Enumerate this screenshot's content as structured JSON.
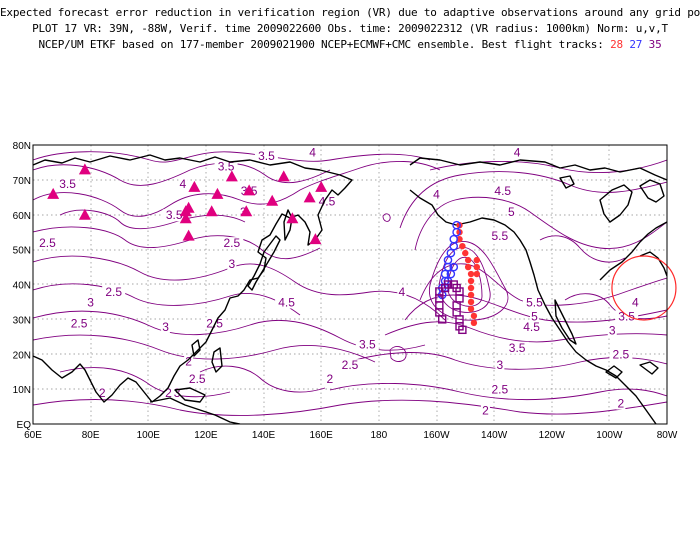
{
  "title": {
    "line1": "Expected forecast error reduction in verification region (VR) due to adaptive observations around any grid point.",
    "line2": "PLOT 17 VR: 39N, -88W, Verif. time 2009022600 Obs. time: 2009022312 (VR radius: 1000km) Norm: u,v,T",
    "line3_prefix": "NCEP/UM ETKF based on 177-member 2009021900 NCEP+ECMWF+CMC ensemble. Best flight tracks:",
    "track_numbers": [
      "28",
      "27",
      "35"
    ]
  },
  "colors": {
    "contour": "#800080",
    "track_28": "#ff3333",
    "track_27": "#3333ff",
    "track_35": "#800080",
    "triangles": "#e0007f",
    "verification_circle": "#ff2a2a"
  },
  "axes": {
    "lon_ticks": [
      "60E",
      "80E",
      "100E",
      "120E",
      "140E",
      "160E",
      "180",
      "160W",
      "140W",
      "120W",
      "100W",
      "80W"
    ],
    "lat_ticks": [
      "EQ",
      "10N",
      "20N",
      "30N",
      "40N",
      "50N",
      "60N",
      "70N",
      "80N"
    ]
  },
  "chart_data": {
    "type": "map-contour",
    "extent": {
      "lon": [
        60,
        280
      ],
      "lat": [
        0,
        80
      ]
    },
    "verification_region": {
      "lat": 39,
      "lon": 272,
      "radius_km": 1000
    },
    "contour_labels": [
      {
        "text": "3.5",
        "lon": 72,
        "lat": 68
      },
      {
        "text": "4",
        "lon": 112,
        "lat": 68
      },
      {
        "text": "3.5",
        "lon": 127,
        "lat": 73
      },
      {
        "text": "3.5",
        "lon": 141,
        "lat": 76
      },
      {
        "text": "3.5",
        "lon": 135,
        "lat": 66
      },
      {
        "text": "4",
        "lon": 157,
        "lat": 77
      },
      {
        "text": "3.5",
        "lon": 109,
        "lat": 59
      },
      {
        "text": "3",
        "lon": 133,
        "lat": 60
      },
      {
        "text": "4.5",
        "lon": 162,
        "lat": 63
      },
      {
        "text": "4",
        "lon": 200,
        "lat": 65
      },
      {
        "text": "4.5",
        "lon": 223,
        "lat": 66
      },
      {
        "text": "5",
        "lon": 226,
        "lat": 60
      },
      {
        "text": "4",
        "lon": 228,
        "lat": 77
      },
      {
        "text": "5.5",
        "lon": 222,
        "lat": 53
      },
      {
        "text": "2.5",
        "lon": 65,
        "lat": 51
      },
      {
        "text": "2.5",
        "lon": 88,
        "lat": 37
      },
      {
        "text": "2.5",
        "lon": 129,
        "lat": 51
      },
      {
        "text": "3",
        "lon": 129,
        "lat": 45
      },
      {
        "text": "3",
        "lon": 80,
        "lat": 34
      },
      {
        "text": "2.5",
        "lon": 76,
        "lat": 28
      },
      {
        "text": "3",
        "lon": 106,
        "lat": 27
      },
      {
        "text": "2.5",
        "lon": 123,
        "lat": 28
      },
      {
        "text": "4.5",
        "lon": 148,
        "lat": 34
      },
      {
        "text": "4",
        "lon": 188,
        "lat": 37
      },
      {
        "text": "5.5",
        "lon": 234,
        "lat": 34
      },
      {
        "text": "5",
        "lon": 234,
        "lat": 30
      },
      {
        "text": "4.5",
        "lon": 233,
        "lat": 27
      },
      {
        "text": "3.5",
        "lon": 176,
        "lat": 22
      },
      {
        "text": "2.5",
        "lon": 170,
        "lat": 16
      },
      {
        "text": "3.5",
        "lon": 228,
        "lat": 21
      },
      {
        "text": "3",
        "lon": 222,
        "lat": 16
      },
      {
        "text": "4",
        "lon": 269,
        "lat": 34
      },
      {
        "text": "3.5",
        "lon": 266,
        "lat": 30
      },
      {
        "text": "3",
        "lon": 261,
        "lat": 26
      },
      {
        "text": "2.5",
        "lon": 264,
        "lat": 19
      },
      {
        "text": "2",
        "lon": 114,
        "lat": 17
      },
      {
        "text": "2.5",
        "lon": 117,
        "lat": 12
      },
      {
        "text": "3",
        "lon": 110,
        "lat": 8
      },
      {
        "text": "2",
        "lon": 84,
        "lat": 8
      },
      {
        "text": "2",
        "lon": 107,
        "lat": 8
      },
      {
        "text": "2",
        "lon": 163,
        "lat": 12
      },
      {
        "text": "2.5",
        "lon": 222,
        "lat": 9
      },
      {
        "text": "2",
        "lon": 217,
        "lat": 3
      },
      {
        "text": "2",
        "lon": 264,
        "lat": 5
      }
    ],
    "observation_sites": [
      {
        "lat": 66,
        "lon": 67
      },
      {
        "lat": 73,
        "lon": 78
      },
      {
        "lat": 60,
        "lon": 78
      },
      {
        "lat": 61,
        "lon": 113
      },
      {
        "lat": 68,
        "lon": 116
      },
      {
        "lat": 62,
        "lon": 114
      },
      {
        "lat": 59,
        "lon": 113
      },
      {
        "lat": 54,
        "lon": 114
      },
      {
        "lat": 66,
        "lon": 124
      },
      {
        "lat": 61,
        "lon": 122
      },
      {
        "lat": 71,
        "lon": 129
      },
      {
        "lat": 67,
        "lon": 135
      },
      {
        "lat": 61,
        "lon": 134
      },
      {
        "lat": 64,
        "lon": 143
      },
      {
        "lat": 71,
        "lon": 147
      },
      {
        "lat": 59,
        "lon": 150
      },
      {
        "lat": 68,
        "lon": 160
      },
      {
        "lat": 65,
        "lon": 156
      },
      {
        "lat": 53,
        "lon": 158
      }
    ],
    "series": [
      {
        "name": "28",
        "lon": [
          208,
          208,
          208,
          209,
          210,
          211,
          211,
          212,
          212,
          212,
          212,
          212,
          212,
          213,
          213,
          214,
          214,
          214
        ],
        "lat": [
          57,
          55,
          53,
          51,
          49,
          47,
          45,
          43,
          41,
          39,
          37,
          35,
          33,
          31,
          29,
          43,
          45,
          47
        ]
      },
      {
        "name": "27",
        "lon": [
          207,
          207,
          206,
          206,
          205,
          204,
          204,
          203,
          203,
          202,
          202,
          203,
          204,
          205,
          206
        ],
        "lat": [
          57,
          55,
          53,
          51,
          49,
          47,
          45,
          43,
          41,
          39,
          37,
          39,
          41,
          43,
          45
        ]
      },
      {
        "name": "35",
        "lon": [
          201,
          201,
          201,
          201,
          202,
          203,
          204,
          206,
          207,
          208,
          208,
          207,
          207,
          208,
          208,
          209
        ],
        "lat": [
          38,
          36,
          34,
          32,
          30,
          39,
          40,
          40,
          39,
          38,
          36,
          34,
          32,
          30,
          28,
          27
        ]
      }
    ]
  }
}
